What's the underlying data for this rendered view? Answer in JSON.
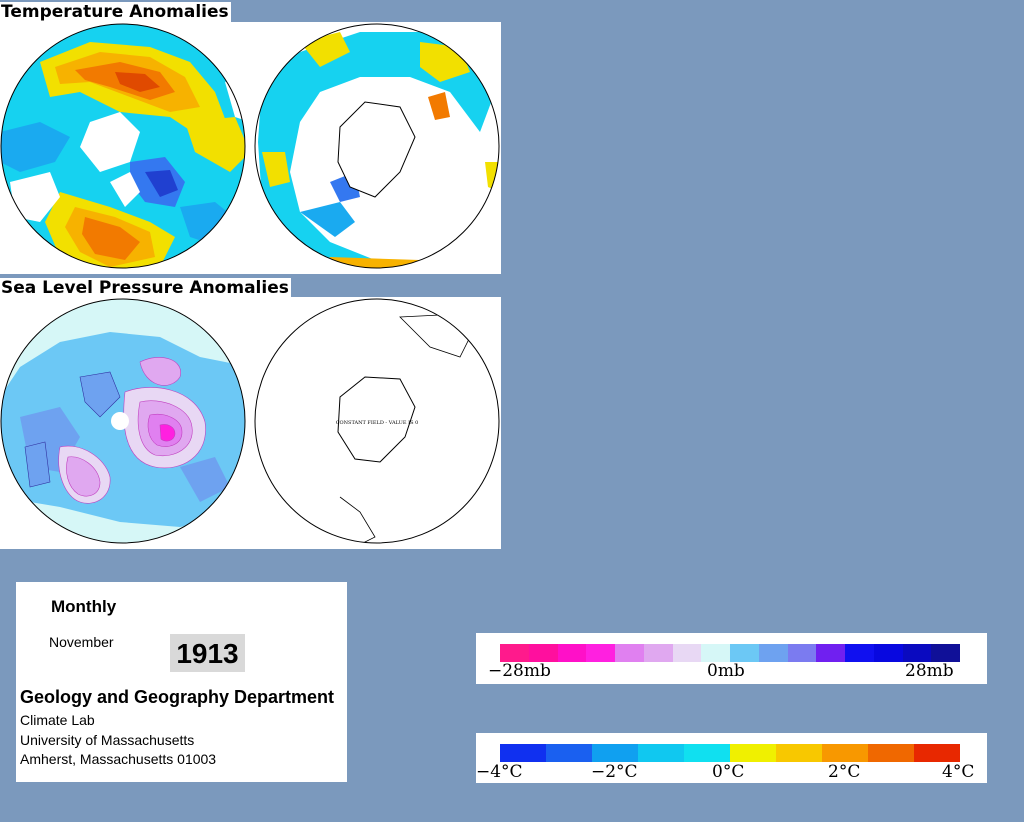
{
  "titles": {
    "temperature": "Temperature Anomalies",
    "pressure": "Sea Level Pressure Anomalies"
  },
  "maps": {
    "pressure_south_note": "CONSTANT FIELD - VALUE IS 0"
  },
  "info": {
    "period": "Monthly",
    "month": "November",
    "year": "1913",
    "department": "Geology and Geography Department",
    "lab": "Climate Lab",
    "university": "University of Massachusetts",
    "address": "Amherst, Massachusetts 01003"
  },
  "pressure_legend": {
    "labels": [
      "−28mb",
      "0mb",
      "28mb"
    ],
    "colors": [
      "#ff1a8c",
      "#ff0f9e",
      "#ff10c8",
      "#ff20e0",
      "#e080f0",
      "#e0a8f0",
      "#e8d8f4",
      "#d6f7f7",
      "#6cc8f5",
      "#6ea2f0",
      "#7b7bf0",
      "#7020f0",
      "#1010f0",
      "#0808e0",
      "#0a0ac0",
      "#101098"
    ]
  },
  "temperature_legend": {
    "labels": [
      "−4°C",
      "−2°C",
      "0°C",
      "2°C",
      "4°C"
    ],
    "colors": [
      "#1030f0",
      "#1a60f0",
      "#10a0f0",
      "#10c8f0",
      "#10e0f0",
      "#f0f000",
      "#f8c800",
      "#f89800",
      "#f06800",
      "#e82800"
    ]
  },
  "map_colors": {
    "temp_warm": [
      "#f2e000",
      "#f7b200",
      "#f27a00",
      "#e04a00"
    ],
    "temp_cool": [
      "#16d2f0",
      "#1aaaf0",
      "#3478f0",
      "#2040d0"
    ],
    "slp": [
      "#d6f7f7",
      "#6cc8f5",
      "#6ea2f0",
      "#7b7bf0",
      "#e0a8f0",
      "#e080f0",
      "#ff20e0"
    ]
  }
}
